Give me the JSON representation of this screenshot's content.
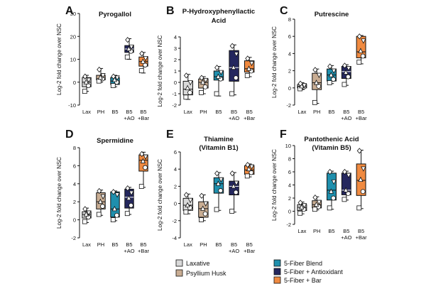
{
  "figure": {
    "ylabel": "Log-2 fold change over NSC",
    "colors": {
      "Lax": "#d9d9d9",
      "PH": "#c9ad93",
      "B5": "#1f8fad",
      "B5AO": "#24275e",
      "B5Bar": "#f08a40"
    },
    "legend": [
      {
        "key": "Lax",
        "label": "Laxative"
      },
      {
        "key": "PH",
        "label": "Psyllium Husk"
      },
      {
        "key": "B5",
        "label": "5-Fiber Blend"
      },
      {
        "key": "B5AO",
        "label": "5-Fiber + Antioxidant"
      },
      {
        "key": "B5Bar",
        "label": "5-Fiber + Bar"
      }
    ]
  },
  "chart_data": [
    {
      "panel": "A",
      "type": "box",
      "title": [
        "Pyrogallol"
      ],
      "ylabel": "Log-2 fold change over NSC",
      "ylim": [
        -10,
        30
      ],
      "yticks": [
        -10,
        0,
        10,
        20,
        30
      ],
      "categories": [
        {
          "key": "Lax",
          "label": [
            "Lax"
          ],
          "min": -4,
          "q1": -2,
          "median": 0,
          "q3": 2,
          "max": 3,
          "points": [
            -4,
            -1.5,
            0,
            1,
            2.5
          ]
        },
        {
          "key": "PH",
          "label": [
            "PH"
          ],
          "min": 0,
          "q1": 1,
          "median": 1.5,
          "q3": 3,
          "max": 6,
          "points": [
            0.5,
            1.5,
            2,
            3,
            5.5
          ]
        },
        {
          "key": "B5",
          "label": [
            "B5"
          ],
          "min": -2,
          "q1": -1,
          "median": 0.5,
          "q3": 2,
          "max": 3,
          "points": [
            -1.5,
            0,
            1,
            2,
            2.5
          ]
        },
        {
          "key": "B5AO",
          "label": [
            "B5",
            "+AO"
          ],
          "min": 10,
          "q1": 13,
          "median": 14.5,
          "q3": 16,
          "max": 19,
          "points": [
            11,
            13.5,
            14.5,
            15.5,
            18.5
          ]
        },
        {
          "key": "B5Bar",
          "label": [
            "B5",
            "+Bar"
          ],
          "min": 4,
          "q1": 7,
          "median": 9,
          "q3": 11,
          "max": 13,
          "points": [
            5,
            7.5,
            9,
            10.5,
            12.5
          ]
        }
      ]
    },
    {
      "panel": "B",
      "type": "box",
      "title": [
        "P-Hydroxyphenyllactic",
        "Acid"
      ],
      "ylabel": "Log-2 fold change over NSC",
      "ylim": [
        -2,
        4
      ],
      "yticks": [
        -2,
        -1,
        0,
        1,
        2,
        3,
        4
      ],
      "categories": [
        {
          "key": "Lax",
          "label": [
            "Lax"
          ],
          "min": -1.5,
          "q1": -1.1,
          "median": -0.6,
          "q3": 0.1,
          "max": 0.7,
          "points": [
            -1.3,
            -0.9,
            -0.5,
            0.0,
            0.6
          ]
        },
        {
          "key": "PH",
          "label": [
            "PH"
          ],
          "min": -1.0,
          "q1": -0.5,
          "median": 0,
          "q3": 0.3,
          "max": 0.5,
          "points": [
            -0.9,
            -0.4,
            0,
            0.2,
            0.4
          ]
        },
        {
          "key": "B5",
          "label": [
            "B5"
          ],
          "min": -1.2,
          "q1": 0.2,
          "median": 0.5,
          "q3": 1.0,
          "max": 1.4,
          "points": [
            -1.0,
            0.3,
            0.5,
            0.9,
            1.3
          ]
        },
        {
          "key": "B5AO",
          "label": [
            "B5",
            "+AO"
          ],
          "min": -1.1,
          "q1": 0.1,
          "median": 1.3,
          "q3": 2.8,
          "max": 3.3,
          "points": [
            -1.0,
            0.4,
            1.3,
            2.5,
            3.2
          ]
        },
        {
          "key": "B5Bar",
          "label": [
            "B5",
            "+Bar"
          ],
          "min": 0.5,
          "q1": 0.9,
          "median": 1.2,
          "q3": 1.9,
          "max": 2.2,
          "points": [
            0.6,
            1.0,
            1.2,
            1.7,
            2.1
          ]
        }
      ]
    },
    {
      "panel": "C",
      "type": "box",
      "title": [
        "Putrescine"
      ],
      "ylabel": "Log-2 fold change over NSC",
      "ylim": [
        -2,
        8
      ],
      "yticks": [
        -2,
        0,
        2,
        4,
        6,
        8
      ],
      "categories": [
        {
          "key": "Lax",
          "label": [
            "Lax"
          ],
          "min": -0.2,
          "q1": 0,
          "median": 0.2,
          "q3": 0.4,
          "max": 0.6,
          "points": [
            -0.1,
            0.1,
            0.2,
            0.3,
            0.5
          ]
        },
        {
          "key": "PH",
          "label": [
            "PH"
          ],
          "min": -1.8,
          "q1": -0.2,
          "median": 0.6,
          "q3": 1.7,
          "max": 2.2,
          "points": [
            -1.7,
            0.2,
            0.6,
            1.5,
            2.1
          ]
        },
        {
          "key": "B5",
          "label": [
            "B5"
          ],
          "min": 0.5,
          "q1": 0.8,
          "median": 1.5,
          "q3": 2.2,
          "max": 2.6,
          "points": [
            0.6,
            1.0,
            1.5,
            2.0,
            2.5
          ]
        },
        {
          "key": "B5AO",
          "label": [
            "B5",
            "+AO"
          ],
          "min": 0.3,
          "q1": 1.1,
          "median": 1.9,
          "q3": 2.5,
          "max": 2.7,
          "points": [
            0.4,
            1.3,
            1.8,
            2.3,
            2.6
          ]
        },
        {
          "key": "B5Bar",
          "label": [
            "B5",
            "+Bar"
          ],
          "min": 2.8,
          "q1": 3.5,
          "median": 4.2,
          "q3": 6.0,
          "max": 6.1,
          "points": [
            3.0,
            3.7,
            4.3,
            5.5,
            6.0
          ]
        }
      ]
    },
    {
      "panel": "D",
      "type": "box",
      "title": [
        "Spermidine"
      ],
      "ylabel": "Log-2 fold change over NSC",
      "ylim": [
        -2,
        8
      ],
      "yticks": [
        -2,
        0,
        2,
        4,
        6,
        8
      ],
      "categories": [
        {
          "key": "Lax",
          "label": [
            "Lax"
          ],
          "min": -0.3,
          "q1": 0.2,
          "median": 0.6,
          "q3": 0.9,
          "max": 1.3,
          "points": [
            -0.2,
            0.3,
            0.6,
            0.8,
            1.2
          ]
        },
        {
          "key": "PH",
          "label": [
            "PH"
          ],
          "min": 0.5,
          "q1": 1.2,
          "median": 2.0,
          "q3": 3.0,
          "max": 3.3,
          "points": [
            0.6,
            1.5,
            2.0,
            2.6,
            3.2
          ]
        },
        {
          "key": "B5",
          "label": [
            "B5"
          ],
          "min": -0.1,
          "q1": 0.3,
          "median": 1.2,
          "q3": 3.1,
          "max": 3.2,
          "points": [
            0.0,
            0.5,
            1.2,
            2.8,
            3.1
          ]
        },
        {
          "key": "B5AO",
          "label": [
            "B5",
            "+AO"
          ],
          "min": 0.6,
          "q1": 1.3,
          "median": 2.5,
          "q3": 3.4,
          "max": 3.6,
          "points": [
            0.7,
            1.6,
            2.4,
            3.0,
            3.5
          ]
        },
        {
          "key": "B5Bar",
          "label": [
            "B5",
            "+Bar"
          ],
          "min": 3.6,
          "q1": 5.4,
          "median": 6.6,
          "q3": 7.2,
          "max": 7.5,
          "points": [
            3.7,
            5.8,
            6.5,
            7.0,
            7.3
          ]
        }
      ]
    },
    {
      "panel": "E",
      "type": "box",
      "title": [
        "Thiamine",
        "(Vitamin B1)"
      ],
      "ylabel": "Log-2 fold change over NSC",
      "ylim": [
        -4,
        6
      ],
      "yticks": [
        -4,
        -2,
        0,
        2,
        4,
        6
      ],
      "categories": [
        {
          "key": "Lax",
          "label": [
            "Lax"
          ],
          "min": -1.2,
          "q1": -0.8,
          "median": -0.2,
          "q3": 0.6,
          "max": 1.1,
          "points": [
            -1.0,
            -0.5,
            -0.2,
            0.4,
            1.0
          ]
        },
        {
          "key": "PH",
          "label": [
            "PH"
          ],
          "min": -2.0,
          "q1": -1.6,
          "median": -0.6,
          "q3": 0.2,
          "max": 1.0,
          "points": [
            -1.9,
            -1.2,
            -0.6,
            0.0,
            0.9
          ]
        },
        {
          "key": "B5",
          "label": [
            "B5"
          ],
          "min": -0.8,
          "q1": 1.2,
          "median": 2.3,
          "q3": 3.0,
          "max": 3.6,
          "points": [
            -0.7,
            1.5,
            2.3,
            2.8,
            3.5
          ]
        },
        {
          "key": "B5AO",
          "label": [
            "B5",
            "+AO"
          ],
          "min": -1.0,
          "q1": 1.0,
          "median": 2.0,
          "q3": 2.6,
          "max": 3.6,
          "points": [
            -0.9,
            1.3,
            2.0,
            2.4,
            3.5
          ]
        },
        {
          "key": "B5Bar",
          "label": [
            "B5",
            "+Bar"
          ],
          "min": 3.1,
          "q1": 3.4,
          "median": 3.9,
          "q3": 4.4,
          "max": 4.6,
          "points": [
            3.2,
            3.6,
            4.0,
            4.3,
            4.5
          ]
        }
      ]
    },
    {
      "panel": "F",
      "type": "box",
      "title": [
        "Pantothenic Acid",
        "(Vitamin B5)"
      ],
      "ylabel": "Log-2 fold change over NSC",
      "ylim": [
        -2,
        10
      ],
      "yticks": [
        -2,
        0,
        2,
        4,
        6,
        8,
        10
      ],
      "categories": [
        {
          "key": "Lax",
          "label": [
            "Lax"
          ],
          "min": -0.4,
          "q1": 0.1,
          "median": 0.6,
          "q3": 1.0,
          "max": 1.4,
          "points": [
            -0.3,
            0.3,
            0.6,
            0.9,
            1.3
          ]
        },
        {
          "key": "PH",
          "label": [
            "PH"
          ],
          "min": 0.2,
          "q1": 0.5,
          "median": 1.0,
          "q3": 1.6,
          "max": 2.2,
          "points": [
            0.3,
            0.7,
            1.0,
            1.4,
            2.1
          ]
        },
        {
          "key": "B5",
          "label": [
            "B5"
          ],
          "min": 0.3,
          "q1": 1.7,
          "median": 3.2,
          "q3": 5.8,
          "max": 6.1,
          "points": [
            0.5,
            2.0,
            3.0,
            4.5,
            6.0
          ]
        },
        {
          "key": "B5AO",
          "label": [
            "B5",
            "+AO"
          ],
          "min": 1.7,
          "q1": 2.5,
          "median": 3.2,
          "q3": 5.8,
          "max": 6.1,
          "points": [
            1.8,
            2.7,
            3.2,
            5.5,
            6.0
          ]
        },
        {
          "key": "B5Bar",
          "label": [
            "B5",
            "+Bar"
          ],
          "min": 0.4,
          "q1": 2.4,
          "median": 4.7,
          "q3": 7.2,
          "max": 9.3,
          "points": [
            0.5,
            3.0,
            4.8,
            6.5,
            9.2
          ]
        }
      ]
    }
  ]
}
